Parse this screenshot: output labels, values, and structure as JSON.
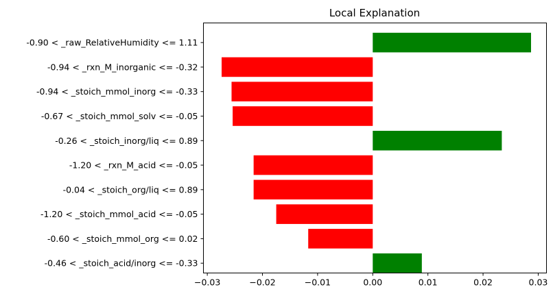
{
  "chart_data": {
    "type": "bar",
    "orientation": "horizontal",
    "title": "Local Explanation",
    "xlabel": "",
    "ylabel": "",
    "xlim": [
      -0.0307,
      0.0315
    ],
    "xticks": [
      -0.03,
      -0.02,
      -0.01,
      0.0,
      0.01,
      0.02,
      0.03
    ],
    "xtick_labels": [
      "−0.03",
      "−0.02",
      "−0.01",
      "0.00",
      "0.01",
      "0.02",
      "0.03"
    ],
    "grid": false,
    "categories": [
      "-0.90 < _raw_RelativeHumidity <= 1.11",
      "-0.94 < _rxn_M_inorganic <= -0.32",
      "-0.94 < _stoich_mmol_inorg <= -0.33",
      "-0.67 < _stoich_mmol_solv <= -0.05",
      "-0.26 < _stoich_inorg/liq <= 0.89",
      "-1.20 < _rxn_M_acid <= -0.05",
      "-0.04 < _stoich_org/liq <= 0.89",
      "-1.20 < _stoich_mmol_acid <= -0.05",
      "-0.60 < _stoich_mmol_org <= 0.02",
      "-0.46 < _stoich_acid/inorg <= -0.33"
    ],
    "values": [
      0.0287,
      -0.0274,
      -0.0256,
      -0.0254,
      0.0234,
      -0.0216,
      -0.0216,
      -0.0175,
      -0.0117,
      0.0089
    ],
    "colors": {
      "positive": "#008000",
      "negative": "#ff0000"
    }
  }
}
